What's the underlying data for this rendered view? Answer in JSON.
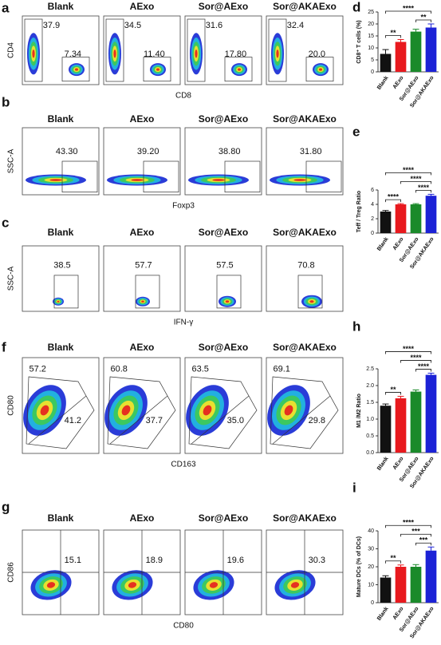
{
  "flow_panels": [
    {
      "letter": "a",
      "groups": [
        "Blank",
        "AExo",
        "Sor@AExo",
        "Sor@AKAExo"
      ],
      "y_label": "CD4",
      "x_label": "CD8",
      "gates": [
        [
          "37.9",
          "7.34"
        ],
        [
          "34.5",
          "11.40"
        ],
        [
          "31.6",
          "17.80"
        ],
        [
          "32.4",
          "20.0"
        ]
      ]
    },
    {
      "letter": "b",
      "groups": [
        "Blank",
        "AExo",
        "Sor@AExo",
        "Sor@AKAExo"
      ],
      "y_label": "SSC-A",
      "x_label": "Foxp3",
      "gates": [
        [
          "43.30"
        ],
        [
          "39.20"
        ],
        [
          "38.80"
        ],
        [
          "31.80"
        ]
      ]
    },
    {
      "letter": "c",
      "groups": [
        "Blank",
        "AExo",
        "Sor@AExo",
        "Sor@AKAExo"
      ],
      "y_label": "SSC-A",
      "x_label": "IFN-γ",
      "gates": [
        [
          "38.5"
        ],
        [
          "57.7"
        ],
        [
          "57.5"
        ],
        [
          "70.8"
        ]
      ]
    },
    {
      "letter": "f",
      "groups": [
        "Blank",
        "AExo",
        "Sor@AExo",
        "Sor@AKAExo"
      ],
      "y_label": "CD80",
      "x_label": "CD163",
      "gates": [
        [
          "57.2",
          "41.2"
        ],
        [
          "60.8",
          "37.7"
        ],
        [
          "63.5",
          "35.0"
        ],
        [
          "69.1",
          "29.8"
        ]
      ]
    },
    {
      "letter": "g",
      "groups": [
        "Blank",
        "AExo",
        "Sor@AExo",
        "Sor@AKAExo"
      ],
      "y_label": "CD86",
      "x_label": "CD80",
      "gates": [
        [
          "15.1"
        ],
        [
          "18.9"
        ],
        [
          "19.6"
        ],
        [
          "30.3"
        ]
      ]
    }
  ],
  "chart_data": [
    {
      "type": "bar",
      "letter": "d",
      "y_label": "CD8⁺ T cells (%)",
      "categories": [
        "Blank",
        "AExo",
        "Sor@AExo",
        "Sor@AKAExo"
      ],
      "values": [
        7.5,
        12.5,
        16.8,
        18.5
      ],
      "errors": [
        1.8,
        1.0,
        1.0,
        1.5
      ],
      "colors": [
        "#111111",
        "#e8191e",
        "#1a8a2a",
        "#1c22d6"
      ],
      "ylim": [
        0,
        25
      ],
      "yticks": [
        0,
        5,
        10,
        15,
        20,
        25
      ],
      "significance": [
        {
          "between": [
            "Blank",
            "AExo"
          ],
          "label": "**"
        },
        {
          "between": [
            "Sor@AExo",
            "Sor@AKAExo"
          ],
          "label": "**"
        },
        {
          "between": [
            "Blank",
            "Sor@AKAExo"
          ],
          "label": "****"
        }
      ]
    },
    {
      "type": "bar",
      "letter": "e",
      "y_label": "Teff / Treg Ratio",
      "categories": [
        "Blank",
        "AExo",
        "Sor@AExo",
        "Sor@AKAExo"
      ],
      "values": [
        3.0,
        4.0,
        4.0,
        5.2
      ],
      "errors": [
        0.15,
        0.1,
        0.1,
        0.2
      ],
      "colors": [
        "#111111",
        "#e8191e",
        "#1a8a2a",
        "#1c22d6"
      ],
      "ylim": [
        0,
        6
      ],
      "yticks": [
        0,
        2,
        4,
        6
      ],
      "significance": [
        {
          "between": [
            "Blank",
            "AExo"
          ],
          "label": "****"
        },
        {
          "between": [
            "Sor@AExo",
            "Sor@AKAExo"
          ],
          "label": "****"
        },
        {
          "between": [
            "AExo",
            "Sor@AKAExo"
          ],
          "label": "****"
        },
        {
          "between": [
            "Blank",
            "Sor@AKAExo"
          ],
          "label": "****"
        }
      ]
    },
    {
      "type": "bar",
      "letter": "h",
      "y_label": "M1 /M2 Ratio",
      "categories": [
        "Blank",
        "AExo",
        "Sor@AExo",
        "Sor@AKAExo"
      ],
      "values": [
        1.4,
        1.62,
        1.82,
        2.32
      ],
      "errors": [
        0.05,
        0.06,
        0.05,
        0.05
      ],
      "colors": [
        "#111111",
        "#e8191e",
        "#1a8a2a",
        "#1c22d6"
      ],
      "ylim": [
        0,
        2.5
      ],
      "yticks": [
        {
          "value": 0,
          "label": "0.0"
        },
        0.5,
        {
          "value": 1,
          "label": "1.0"
        },
        1.5,
        {
          "value": 2,
          "label": "2.0"
        },
        2.5
      ],
      "significance": [
        {
          "between": [
            "Blank",
            "AExo"
          ],
          "label": "**"
        },
        {
          "between": [
            "Sor@AExo",
            "Sor@AKAExo"
          ],
          "label": "****"
        },
        {
          "between": [
            "AExo",
            "Sor@AKAExo"
          ],
          "label": "****"
        },
        {
          "between": [
            "Blank",
            "Sor@AKAExo"
          ],
          "label": "****"
        }
      ]
    },
    {
      "type": "bar",
      "letter": "i",
      "y_label": "Mature DCs (% of DCs)",
      "categories": [
        "Blank",
        "AExo",
        "Sor@AExo",
        "Sor@AKAExo"
      ],
      "values": [
        14,
        20,
        20,
        29
      ],
      "errors": [
        1.0,
        1.0,
        1.2,
        2.0
      ],
      "colors": [
        "#111111",
        "#e8191e",
        "#1a8a2a",
        "#1c22d6"
      ],
      "ylim": [
        0,
        40
      ],
      "yticks": [
        0,
        10,
        20,
        30,
        40
      ],
      "significance": [
        {
          "between": [
            "Blank",
            "AExo"
          ],
          "label": "**"
        },
        {
          "between": [
            "Sor@AExo",
            "Sor@AKAExo"
          ],
          "label": "***"
        },
        {
          "between": [
            "AExo",
            "Sor@AKAExo"
          ],
          "label": "***"
        },
        {
          "between": [
            "Blank",
            "Sor@AKAExo"
          ],
          "label": "****"
        }
      ]
    }
  ]
}
